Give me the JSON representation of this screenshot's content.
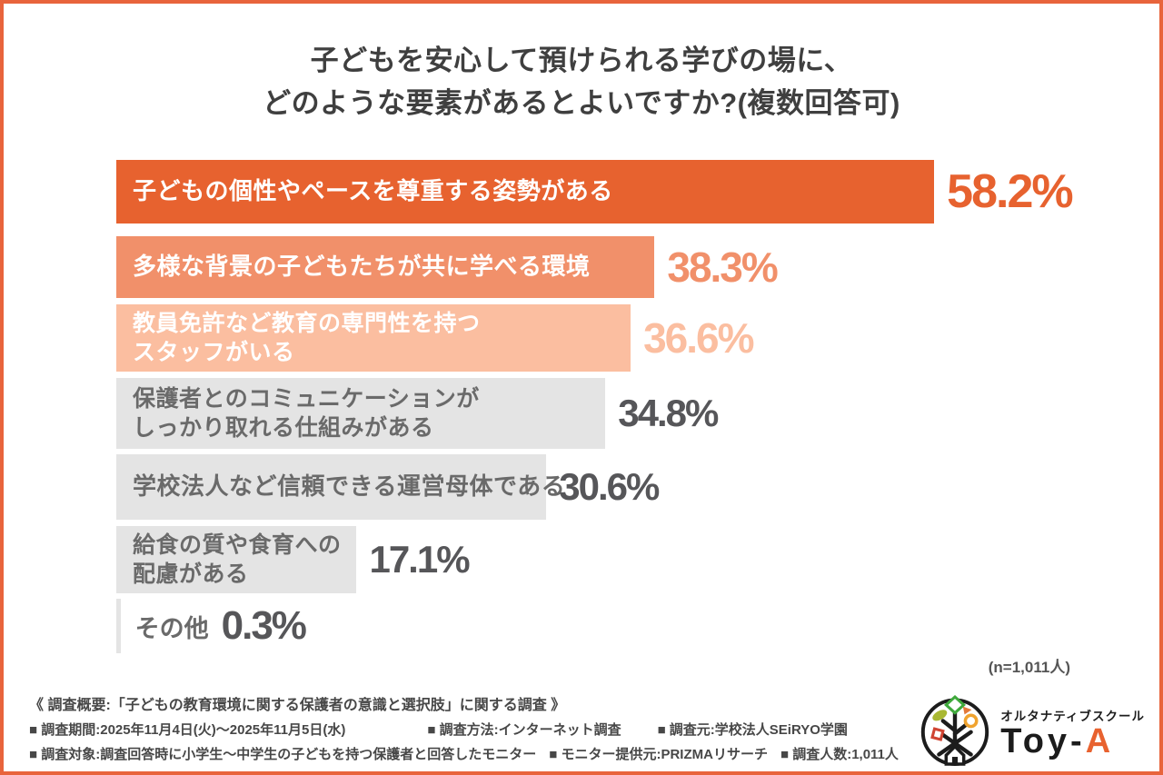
{
  "page": {
    "background": "#FFFFFF",
    "border_color": "#E8643C"
  },
  "title": {
    "line1": "子どもを安心して預けられる学びの場に、",
    "line2": "どのような要素があるとよいですか?(複数回答可)"
  },
  "chart_data": {
    "type": "bar",
    "orientation": "horizontal",
    "title": "子どもを安心して預けられる学びの場に、どのような要素があるとよいですか?(複数回答可)",
    "unit": "%",
    "xlim": [
      0,
      60
    ],
    "grid": false,
    "legend": "none",
    "sample_label": "(n=1,011人)",
    "categories": [
      "子どもの個性やペースを尊重する姿勢がある",
      "多様な背景の子どもたちが共に学べる環境",
      "教員免許など教育の専門性を持つスタッフがいる",
      "保護者とのコミュニケーションがしっかり取れる仕組みがある",
      "学校法人など信頼できる運営母体である",
      "給食の質や食育への配慮がある",
      "その他"
    ],
    "values": [
      58.2,
      38.3,
      36.6,
      34.8,
      30.6,
      17.1,
      0.3
    ],
    "bars": [
      {
        "label": "子どもの個性やペースを尊重する姿勢がある",
        "label2": "",
        "label_out": "",
        "value": 58.2,
        "value_text": "58.2%",
        "bar_color": "#E7622F",
        "label_color": "#FFFFFF",
        "value_color": "#E7622F"
      },
      {
        "label": "多様な背景の子どもたちが共に学べる環境",
        "label2": "",
        "label_out": "",
        "value": 38.3,
        "value_text": "38.3%",
        "bar_color": "#F1906A",
        "label_color": "#FFFFFF",
        "value_color": "#F1906A"
      },
      {
        "label": "教員免許など教育の専門性を持つ",
        "label2": "スタッフがいる",
        "label_out": "",
        "value": 36.6,
        "value_text": "36.6%",
        "bar_color": "#FBBEA0",
        "label_color": "#FFFFFF",
        "value_color": "#FBBEA0"
      },
      {
        "label": "保護者とのコミュニケーションが",
        "label2": "しっかり取れる仕組みがある",
        "label_out": "",
        "value": 34.8,
        "value_text": "34.8%",
        "bar_color": "#E4E4E4",
        "label_color": "#6A6A6A",
        "value_color": "#565659"
      },
      {
        "label": "学校法人など信頼できる運営母体である",
        "label2": "",
        "label_out": "",
        "value": 30.6,
        "value_text": "30.6%",
        "bar_color": "#E4E4E4",
        "label_color": "#6A6A6A",
        "value_color": "#565659"
      },
      {
        "label": "給食の質や食育への",
        "label2": "配慮がある",
        "label_out": "",
        "value": 17.1,
        "value_text": "17.1%",
        "bar_color": "#E4E4E4",
        "label_color": "#6A6A6A",
        "value_color": "#565659"
      },
      {
        "label": "",
        "label2": "",
        "label_out": "その他",
        "value": 0.3,
        "value_text": "0.3%",
        "bar_color": "#E4E4E4",
        "label_color": "#6A6A6A",
        "value_color": "#565659"
      }
    ]
  },
  "footer": {
    "heading": "《 調査概要:「子どもの教育環境に関する保護者の意識と選択肢」に関する調査 》",
    "line2": [
      "■ 調査期間:2025年11月4日(火)〜2025年11月5日(水)",
      "■ 調査方法:インターネット調査",
      "■ 調査元:学校法人SEiRYO学園"
    ],
    "line3": [
      "■ 調査対象:調査回答時に小学生〜中学生の子どもを持つ保護者と回答したモニター",
      "■ モニター提供元:PRIZMAリサーチ",
      "■ 調査人数:1,011人"
    ]
  },
  "logo": {
    "subtitle": "オルタナティブスクール",
    "name_black": "Toy-",
    "name_accent": "A",
    "accent_color": "#E8622F"
  }
}
